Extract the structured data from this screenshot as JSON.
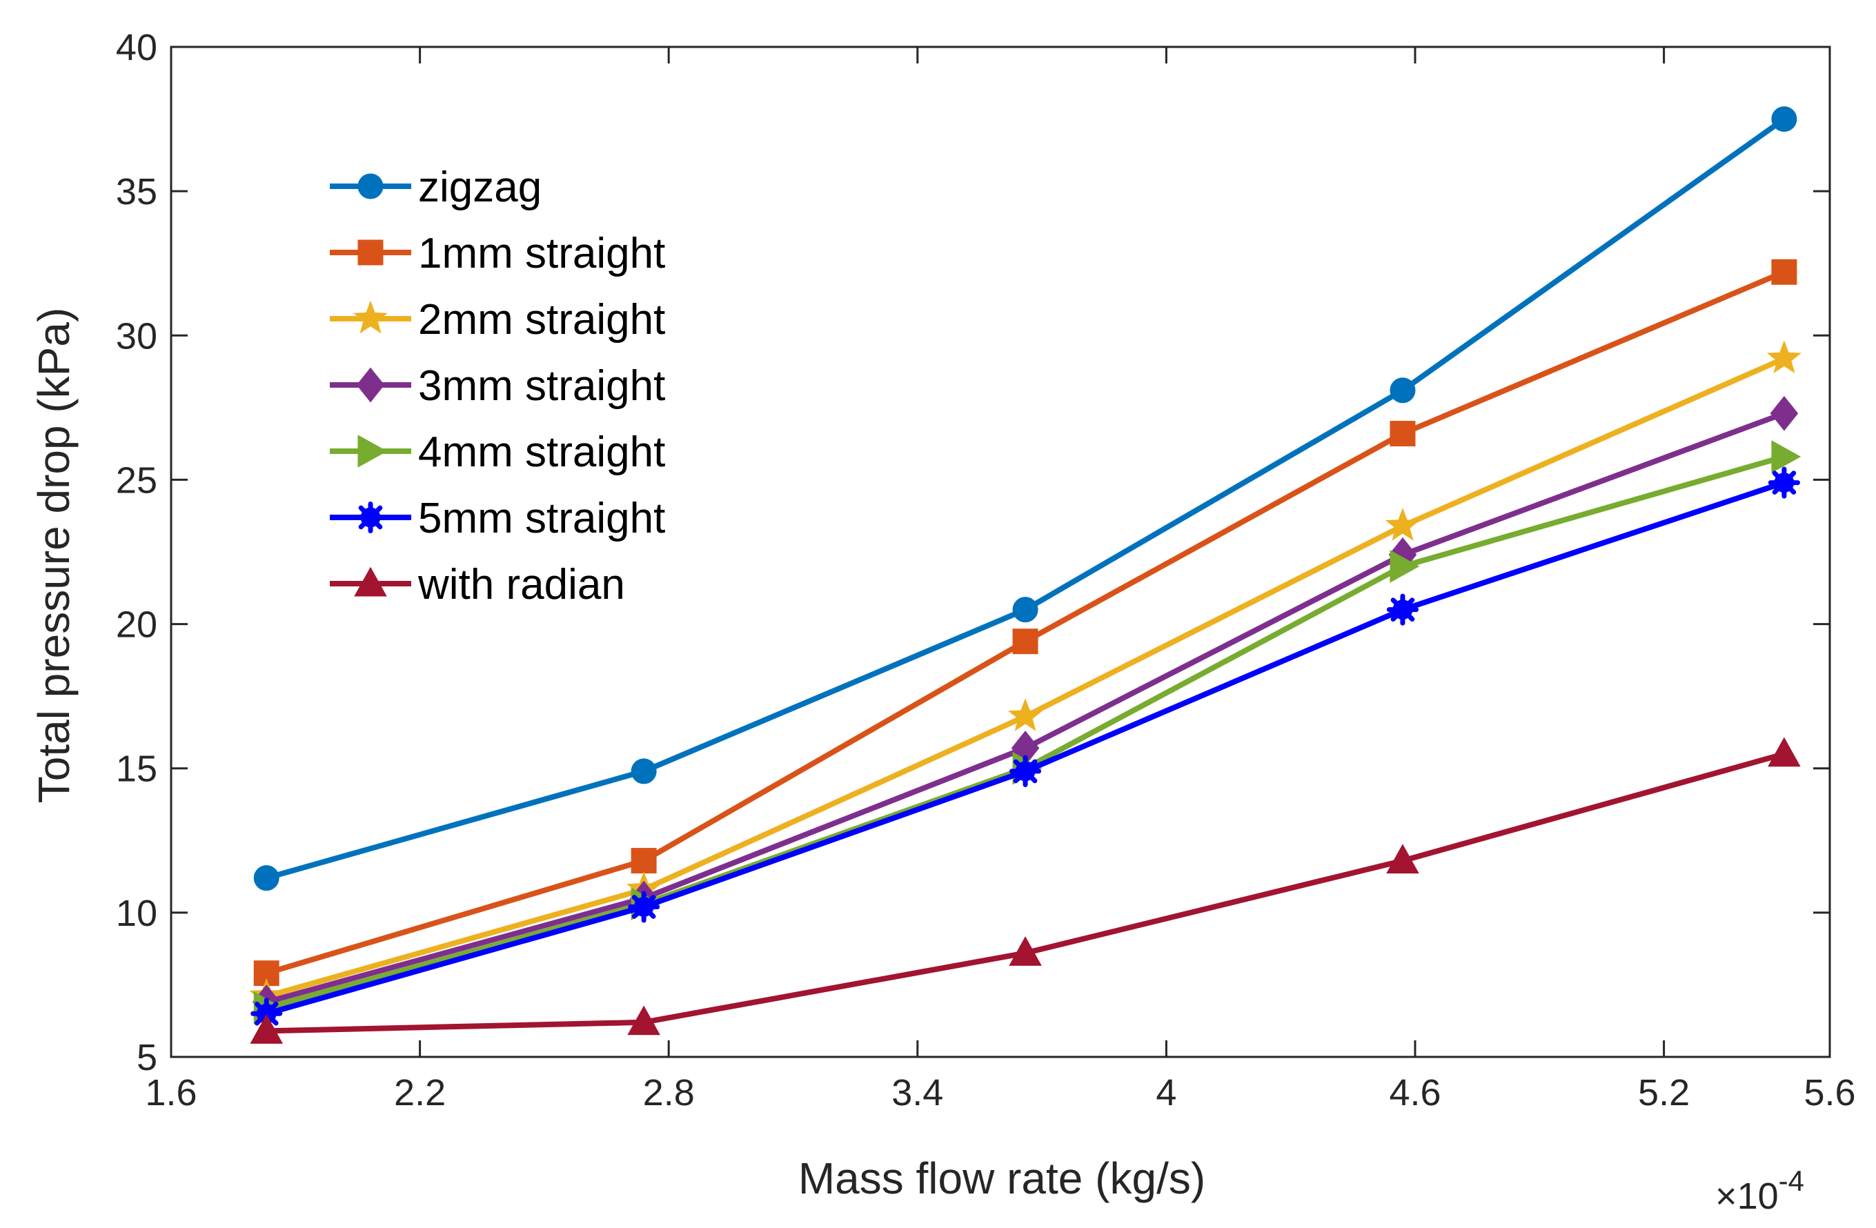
{
  "chart_data": {
    "type": "line",
    "title": "",
    "xlabel": "Mass flow rate (kg/s)",
    "ylabel": "Total pressure drop (kPa)",
    "x_multiplier_text": "×10",
    "x_multiplier_exp": "-4",
    "xlim": [
      1.6,
      5.6
    ],
    "ylim": [
      5,
      40
    ],
    "xticks": [
      "1.6",
      "2.2",
      "2.8",
      "3.4",
      "4",
      "4.6",
      "5.2",
      "5.6"
    ],
    "xtick_values": [
      1.6,
      2.2,
      2.8,
      3.4,
      4.0,
      4.6,
      5.2,
      5.6
    ],
    "yticks": [
      "5",
      "10",
      "15",
      "20",
      "25",
      "30",
      "35",
      "40"
    ],
    "ytick_values": [
      5,
      10,
      15,
      20,
      25,
      30,
      35,
      40
    ],
    "grid": false,
    "legend_position": "top-left",
    "x": [
      1.83,
      2.74,
      3.66,
      4.57,
      5.49
    ],
    "series": [
      {
        "name": "zigzag",
        "color": "#0072BD",
        "marker": "circle",
        "values": [
          11.2,
          14.9,
          20.5,
          28.1,
          37.5
        ]
      },
      {
        "name": "1mm straight",
        "color": "#D95319",
        "marker": "square",
        "values": [
          7.9,
          11.8,
          19.4,
          26.6,
          32.2
        ]
      },
      {
        "name": "2mm straight",
        "color": "#EDB120",
        "marker": "star",
        "values": [
          7.1,
          10.8,
          16.8,
          23.4,
          29.2
        ]
      },
      {
        "name": "3mm straight",
        "color": "#7E2F8E",
        "marker": "diamond",
        "values": [
          6.9,
          10.5,
          15.7,
          22.4,
          27.3
        ]
      },
      {
        "name": "4mm straight",
        "color": "#77AC30",
        "marker": "triangle-right",
        "values": [
          6.7,
          10.3,
          15.0,
          22.0,
          25.8
        ]
      },
      {
        "name": "5mm straight",
        "color": "#0000FF",
        "marker": "asterisk",
        "values": [
          6.5,
          10.2,
          14.9,
          20.5,
          24.9
        ]
      },
      {
        "name": "with radian",
        "color": "#A2142F",
        "marker": "triangle-up",
        "values": [
          5.9,
          6.2,
          8.6,
          11.8,
          15.5
        ]
      }
    ]
  }
}
